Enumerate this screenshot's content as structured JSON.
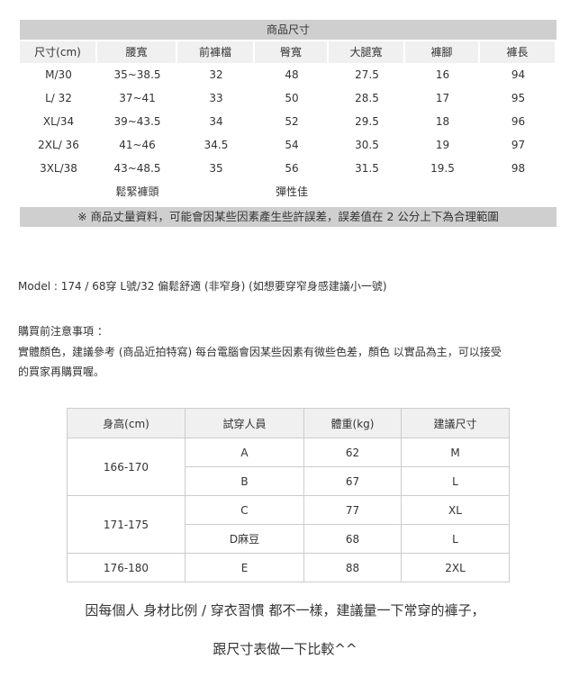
{
  "size_table": {
    "title": "商品尺寸",
    "headers": [
      "尺寸(cm)",
      "腰寬",
      "前褲檔",
      "臀寬",
      "大腿寬",
      "褲腳",
      "褲長"
    ],
    "rows": [
      [
        "M/30",
        "35~38.5",
        "32",
        "48",
        "27.5",
        "16",
        "94"
      ],
      [
        "L/ 32",
        "37~41",
        "33",
        "50",
        "28.5",
        "17",
        "95"
      ],
      [
        "XL/34",
        "39~43.5",
        "34",
        "52",
        "29.5",
        "18",
        "96"
      ],
      [
        "2XL/ 36",
        "41~46",
        "34.5",
        "54",
        "30.5",
        "19",
        "97"
      ],
      [
        "3XL/38",
        "43~48.5",
        "35",
        "56",
        "31.5",
        "19.5",
        "98"
      ]
    ],
    "notes": [
      "",
      "鬆緊褲頭",
      "",
      "彈性佳",
      "",
      "",
      ""
    ],
    "footer": "※ 商品丈量資料，可能會因某些因素產生些許誤差，誤差值在 2 公分上下為合理範圍"
  },
  "model_line": "Model : 174 / 68穿  L號/32 偏鬆舒適  (非窄身)        (如想要穿窄身感建議小一號)",
  "notice": {
    "title": "購買前注意事項 ：",
    "line1": "實體顏色，建議參考 (商品近拍特寫) 每台電腦會因某些因素有微些色差，顏色 以實品為主，可以接受",
    "line2": "的買家再購買喔。"
  },
  "fit_table": {
    "headers": [
      "身高(cm)",
      "試穿人員",
      "體重(kg)",
      "建議尺寸"
    ],
    "groups": [
      {
        "height": "166-170",
        "rows": [
          [
            "A",
            "62",
            "M"
          ],
          [
            "B",
            "67",
            "L"
          ]
        ]
      },
      {
        "height": "171-175",
        "rows": [
          [
            "C",
            "77",
            "XL"
          ],
          [
            "D麻豆",
            "68",
            "L"
          ]
        ]
      },
      {
        "height": "176-180",
        "rows": [
          [
            "E",
            "88",
            "2XL"
          ]
        ]
      }
    ]
  },
  "closing": {
    "line1": "因每個人  身材比例  /  穿衣習慣  都不一樣，建議量一下常穿的褲子，",
    "line2": "跟尺寸表做一下比較^^"
  }
}
